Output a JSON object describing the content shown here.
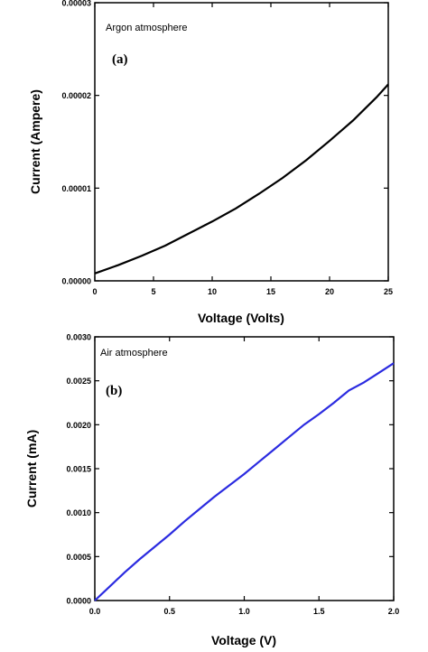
{
  "chart_data": [
    {
      "type": "line",
      "title": "",
      "annotation": "Argon atmosphere",
      "panel_label": "(a)",
      "xlabel": "Voltage (Volts)",
      "ylabel": "Current (Ampere)",
      "xlim": [
        0,
        25
      ],
      "ylim": [
        0,
        3e-05
      ],
      "xticks": [
        0,
        5,
        10,
        15,
        20,
        25
      ],
      "xtick_labels": [
        "0",
        "5",
        "10",
        "15",
        "20",
        "25"
      ],
      "yticks": [
        0,
        1e-05,
        2e-05,
        3e-05
      ],
      "ytick_labels": [
        "0.00000",
        "0.00001",
        "0.00002",
        "0.00003"
      ],
      "grid": false,
      "color": "#000000",
      "series": [
        {
          "x": [
            0,
            2,
            4,
            6,
            8,
            10,
            12,
            14,
            16,
            18,
            20,
            22,
            24,
            25
          ],
          "y": [
            8e-07,
            1.7e-06,
            2.7e-06,
            3.8e-06,
            5.1e-06,
            6.4e-06,
            7.8e-06,
            9.4e-06,
            1.11e-05,
            1.3e-05,
            1.51e-05,
            1.73e-05,
            1.98e-05,
            2.12e-05
          ]
        }
      ]
    },
    {
      "type": "line",
      "title": "",
      "annotation": "Air atmosphere",
      "panel_label": "(b)",
      "xlabel": "Voltage (V)",
      "ylabel": "Current (mA)",
      "xlim": [
        0,
        2
      ],
      "ylim": [
        0,
        0.003
      ],
      "xticks": [
        0,
        0.5,
        1.0,
        1.5,
        2.0
      ],
      "xtick_labels": [
        "0.0",
        "0.5",
        "1.0",
        "1.5",
        "2.0"
      ],
      "yticks": [
        0,
        0.0005,
        0.001,
        0.0015,
        0.002,
        0.0025,
        0.003
      ],
      "ytick_labels": [
        "0.0000",
        "0.0005",
        "0.0010",
        "0.0015",
        "0.0020",
        "0.0025",
        "0.0030"
      ],
      "grid": false,
      "color": "#2b2be0",
      "series": [
        {
          "x": [
            0,
            0.1,
            0.2,
            0.3,
            0.4,
            0.5,
            0.6,
            0.7,
            0.8,
            0.9,
            1.0,
            1.1,
            1.2,
            1.3,
            1.4,
            1.5,
            1.6,
            1.7,
            1.8,
            1.9,
            2.0
          ],
          "y": [
            0.0,
            0.00016,
            0.00032,
            0.00047,
            0.00061,
            0.00075,
            0.0009,
            0.00104,
            0.00118,
            0.00131,
            0.00144,
            0.00158,
            0.00172,
            0.00186,
            0.002,
            0.00212,
            0.00225,
            0.00239,
            0.00248,
            0.00259,
            0.0027
          ]
        }
      ]
    }
  ]
}
